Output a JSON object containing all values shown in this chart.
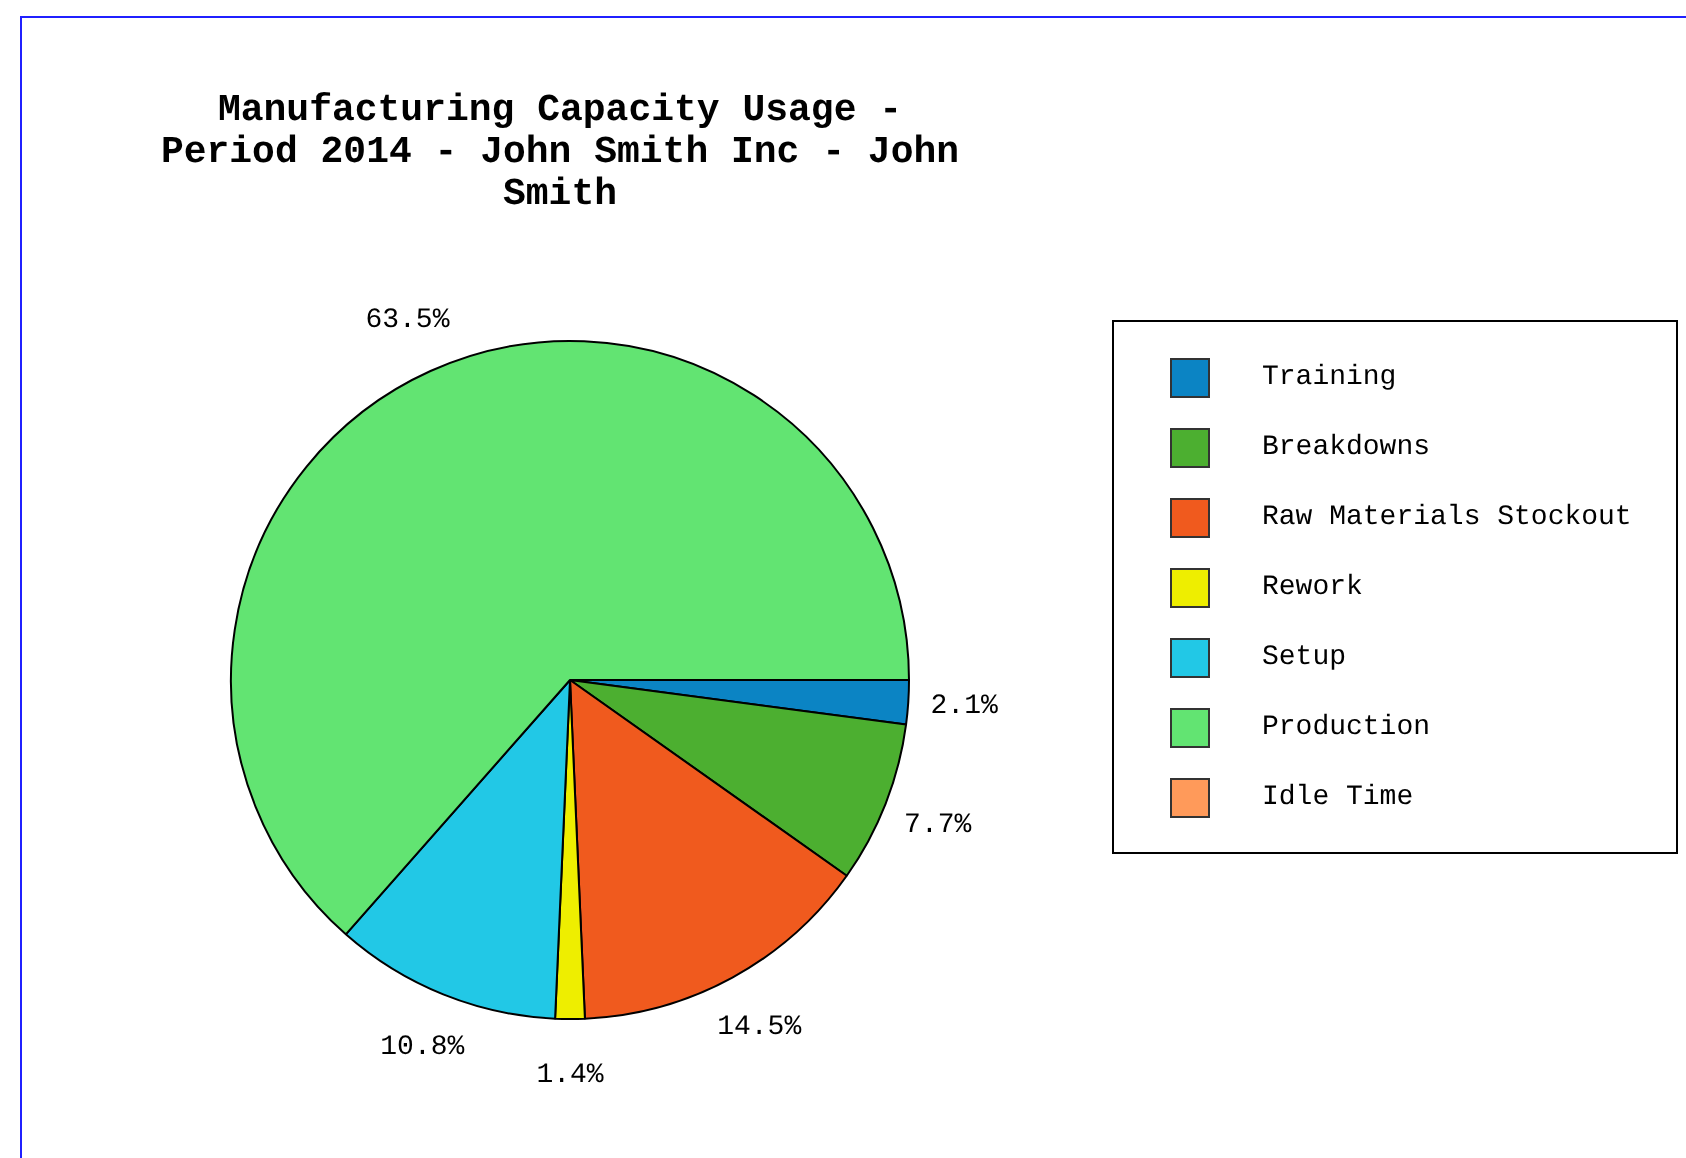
{
  "chart_data": {
    "type": "pie",
    "title": "Manufacturing Capacity Usage - Period 2014 - John Smith Inc - John Smith",
    "categories": [
      "Training",
      "Breakdowns",
      "Raw Materials Stockout",
      "Rework",
      "Setup",
      "Production",
      "Idle Time"
    ],
    "values": [
      2.1,
      7.7,
      14.5,
      1.4,
      10.8,
      63.5,
      0
    ],
    "colors": [
      "#0b84c4",
      "#4caf30",
      "#f05a1e",
      "#eeee00",
      "#22c8e6",
      "#62e472",
      "#ff9a5a"
    ],
    "value_labels": [
      "2.1%",
      "7.7%",
      "14.5%",
      "1.4%",
      "10.8%",
      "63.5%",
      null
    ],
    "legend": "right"
  }
}
